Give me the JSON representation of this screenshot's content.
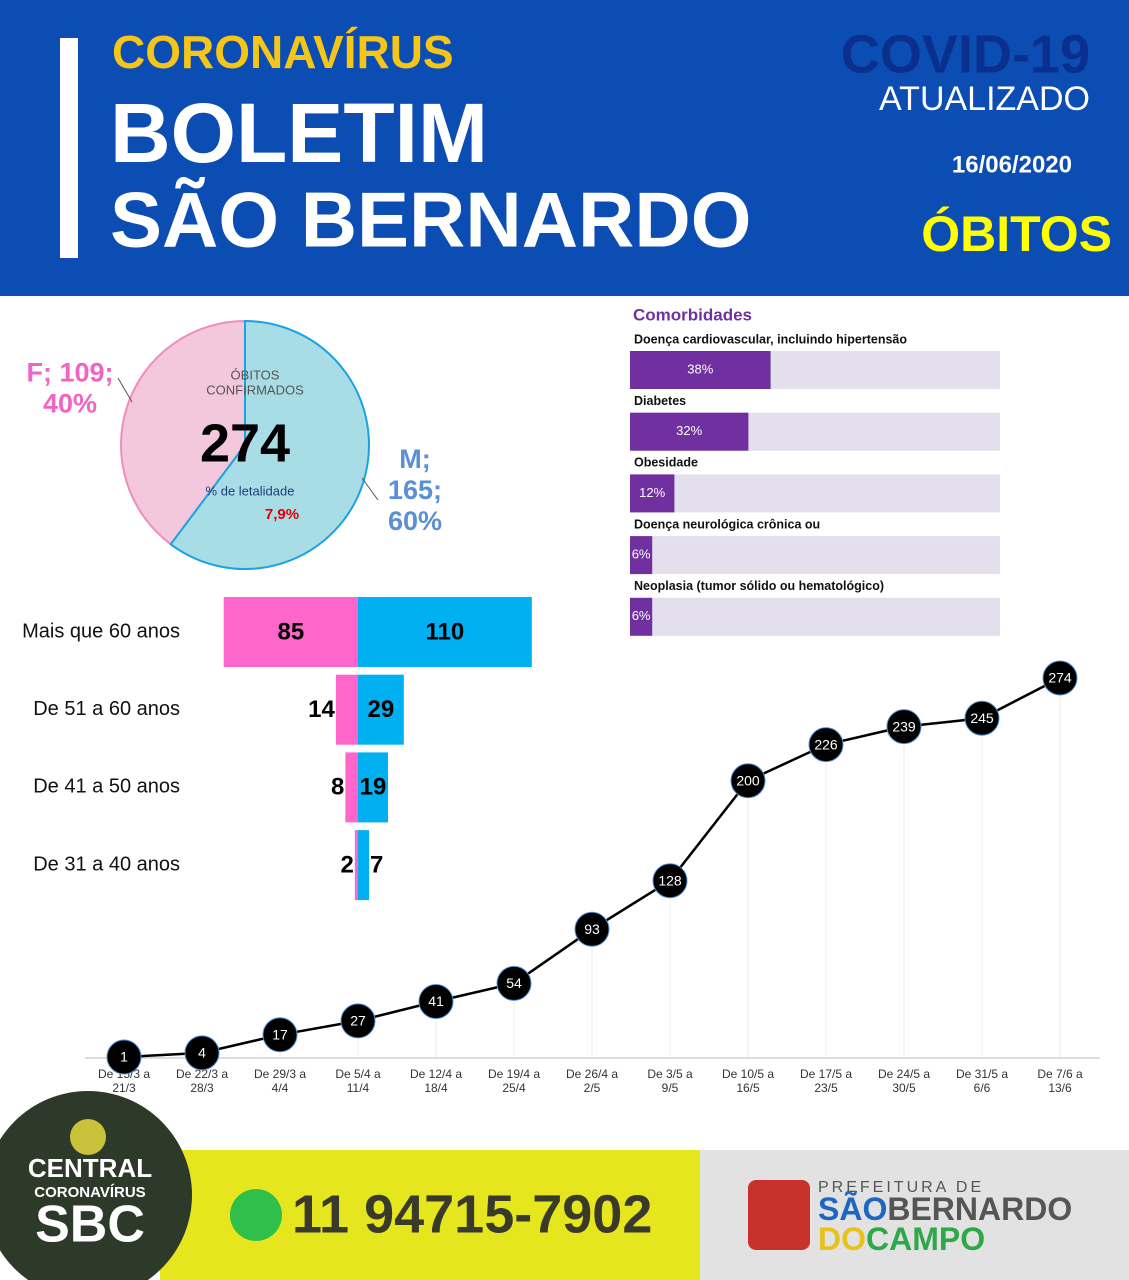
{
  "header": {
    "kicker": "CORONAVÍRUS",
    "title_1": "BOLETIM",
    "title_2": "SÃO BERNARDO",
    "badge_1": "COVID-19",
    "badge_2": "ATUALIZADO",
    "date": "16/06/2020",
    "section": "ÓBITOS"
  },
  "chart_data": [
    {
      "type": "pie",
      "categories": [
        "F",
        "M"
      ],
      "values": [
        109,
        165
      ],
      "value_labels": [
        "F; 109;\n40%",
        "M;\n165;\n60%"
      ],
      "colors": [
        "#f3c7dc",
        "#a9dde6"
      ],
      "center_title": "ÓBITOS\nCONFIRMADOS",
      "total": 274,
      "lethality_title": "% de letalidade",
      "lethality": {
        "value": 7.9,
        "label": "7,9%"
      }
    },
    {
      "type": "pyramid",
      "categories": [
        "Mais que 60 anos",
        "De 51 a 60 anos",
        "De 41 a 50 anos",
        "De 31 a 40 anos"
      ],
      "series": [
        {
          "name": "F",
          "color": "#ff66cc",
          "values": [
            85,
            14,
            8,
            2
          ]
        },
        {
          "name": "M",
          "color": "#00b0f0",
          "values": [
            110,
            29,
            19,
            7
          ]
        }
      ]
    },
    {
      "type": "hbar",
      "title": "Comorbidades",
      "categories": [
        "Doença cardiovascular, incluindo hipertensão",
        "Diabetes",
        "Obesidade",
        "Doença neurológica crônica ou",
        "Neoplasia (tumor sólido ou hematológico)"
      ],
      "values": [
        38,
        32,
        12,
        6,
        6
      ],
      "value_labels": [
        "38%",
        "32%",
        "12%",
        "6%",
        "6%"
      ],
      "xlim": [
        0,
        100
      ],
      "color": "#7030a0",
      "track_color": "#e4dfec"
    },
    {
      "type": "line",
      "categories": [
        "De 15/3 a\n21/3",
        "De 22/3 a\n28/3",
        "De 29/3 a\n4/4",
        "De 5/4 a\n11/4",
        "De 12/4 a\n18/4",
        "De 19/4 a\n25/4",
        "De 26/4 a\n2/5",
        "De 3/5 a\n9/5",
        "De 10/5 a\n16/5",
        "De 17/5 a\n23/5",
        "De 24/5 a\n30/5",
        "De 31/5 a\n6/6",
        "De 7/6 a\n13/6"
      ],
      "values": [
        1,
        4,
        17,
        27,
        41,
        54,
        93,
        128,
        200,
        226,
        239,
        245,
        274
      ],
      "color": "#000000"
    }
  ],
  "footer": {
    "logo_1": "CENTRAL",
    "logo_2": "CORONAVÍRUS",
    "logo_3": "SBC",
    "phone": "11 94715-7902",
    "pref": "PREFEITURA DE",
    "city_1": "SÃO",
    "city_2": "BERNARDO",
    "city_3": "DO",
    "city_4": "CAMPO"
  }
}
